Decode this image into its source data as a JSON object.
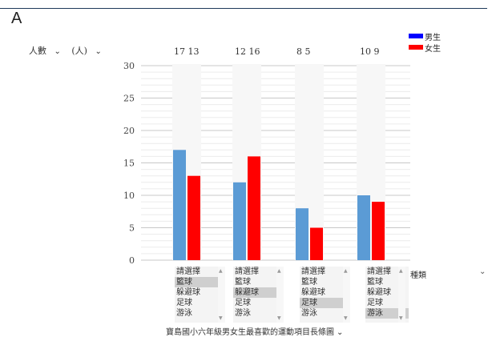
{
  "corner_letter": "A",
  "y_axis": {
    "label": "人數",
    "dropdown_icon": "chevron-down-icon",
    "unit": "(人)"
  },
  "legend": [
    {
      "name": "男生",
      "color": "#0000ff"
    },
    {
      "name": "女生",
      "color": "#ff0000"
    }
  ],
  "kind_label": "種類",
  "caption": "寶島國小六年級男女生最喜歡的運動項目長條圖",
  "chart_data": {
    "type": "bar",
    "categories": [
      "籃球",
      "躲避球",
      "足球",
      "游泳"
    ],
    "series": [
      {
        "name": "男生",
        "color": "#5b9bd5",
        "values": [
          17,
          12,
          8,
          10
        ]
      },
      {
        "name": "女生",
        "color": "#ff0000",
        "values": [
          13,
          16,
          5,
          9
        ]
      }
    ],
    "top_labels": [
      "17  13",
      "12  16",
      "8   5",
      "10  9"
    ],
    "ylim": [
      0,
      30
    ],
    "yticks": [
      0,
      5,
      10,
      15,
      20,
      25,
      30
    ],
    "grid": true
  },
  "selects": [
    {
      "placeholder": "請選擇",
      "options": [
        "籃球",
        "躲避球",
        "足球",
        "游泳"
      ],
      "selected": "籃球"
    },
    {
      "placeholder": "請選擇",
      "options": [
        "籃球",
        "躲避球",
        "足球",
        "游泳"
      ],
      "selected": "躲避球"
    },
    {
      "placeholder": "請選擇",
      "options": [
        "籃球",
        "躲避球",
        "足球",
        "游泳"
      ],
      "selected": "足球"
    },
    {
      "placeholder": "請選擇",
      "options": [
        "籃球",
        "躲避球",
        "足球",
        "游泳"
      ],
      "selected": "游泳"
    }
  ]
}
